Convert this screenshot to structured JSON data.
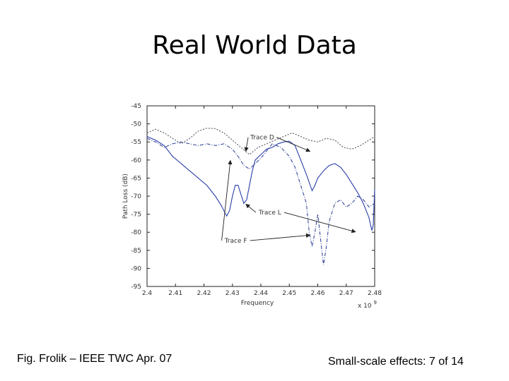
{
  "slide": {
    "title": "Real World Data",
    "footer_left": "Fig. Frolik – IEEE TWC Apr. 07",
    "footer_right": "Small-scale effects: 7 of 14"
  },
  "chart_data": {
    "type": "line",
    "title": "",
    "xlabel": "Frequency",
    "ylabel": "Path Loss (dB)",
    "x_multiplier_label": "x 10",
    "x_multiplier_exponent": "9",
    "xlim": [
      2.4,
      2.48
    ],
    "ylim": [
      -95,
      -45
    ],
    "xticks": [
      "2.4",
      "2.41",
      "2.42",
      "2.43",
      "2.44",
      "2.45",
      "2.46",
      "2.47",
      "2.48"
    ],
    "yticks": [
      "-45",
      "-50",
      "-55",
      "-60",
      "-65",
      "-70",
      "-75",
      "-80",
      "-85",
      "-90",
      "-95"
    ],
    "colors": {
      "solid": "#2a3ea8",
      "dotted": "#555566",
      "dashdot": "#3a4a9a"
    },
    "series": [
      {
        "style": "solid",
        "points": [
          [
            2.4,
            -53.5
          ],
          [
            2.403,
            -54.5
          ],
          [
            2.406,
            -56
          ],
          [
            2.409,
            -59
          ],
          [
            2.412,
            -61
          ],
          [
            2.415,
            -63
          ],
          [
            2.418,
            -65
          ],
          [
            2.421,
            -67
          ],
          [
            2.424,
            -70
          ],
          [
            2.426,
            -72.5
          ],
          [
            2.428,
            -75.5
          ],
          [
            2.429,
            -74
          ],
          [
            2.43,
            -70
          ],
          [
            2.431,
            -67
          ],
          [
            2.432,
            -67
          ],
          [
            2.433,
            -69.5
          ],
          [
            2.434,
            -72
          ],
          [
            2.435,
            -71
          ],
          [
            2.436,
            -67
          ],
          [
            2.437,
            -63
          ],
          [
            2.438,
            -60
          ],
          [
            2.44,
            -58.5
          ],
          [
            2.442,
            -57
          ],
          [
            2.444,
            -56.5
          ],
          [
            2.446,
            -55.5
          ],
          [
            2.448,
            -55
          ],
          [
            2.45,
            -54.8
          ],
          [
            2.452,
            -56
          ],
          [
            2.454,
            -60
          ],
          [
            2.456,
            -64
          ],
          [
            2.458,
            -68.5
          ],
          [
            2.459,
            -67
          ],
          [
            2.46,
            -65
          ],
          [
            2.462,
            -63
          ],
          [
            2.464,
            -61.5
          ],
          [
            2.466,
            -61
          ],
          [
            2.468,
            -62
          ],
          [
            2.47,
            -64
          ],
          [
            2.472,
            -66.5
          ],
          [
            2.474,
            -69
          ],
          [
            2.476,
            -72
          ],
          [
            2.478,
            -76
          ],
          [
            2.479,
            -79.5
          ],
          [
            2.4795,
            -78
          ],
          [
            2.48,
            -68
          ]
        ]
      },
      {
        "style": "dotted",
        "points": [
          [
            2.4,
            -52.5
          ],
          [
            2.403,
            -51.5
          ],
          [
            2.406,
            -52.5
          ],
          [
            2.409,
            -54
          ],
          [
            2.412,
            -55.5
          ],
          [
            2.415,
            -54
          ],
          [
            2.418,
            -52
          ],
          [
            2.421,
            -51.2
          ],
          [
            2.424,
            -51.3
          ],
          [
            2.427,
            -52.5
          ],
          [
            2.43,
            -54.5
          ],
          [
            2.433,
            -56.5
          ],
          [
            2.436,
            -58.5
          ],
          [
            2.439,
            -56.5
          ],
          [
            2.442,
            -55.5
          ],
          [
            2.445,
            -54.5
          ],
          [
            2.448,
            -53.5
          ],
          [
            2.451,
            -52.5
          ],
          [
            2.454,
            -53.5
          ],
          [
            2.457,
            -54.5
          ],
          [
            2.46,
            -55
          ],
          [
            2.463,
            -54
          ],
          [
            2.466,
            -54.5
          ],
          [
            2.469,
            -56.5
          ],
          [
            2.472,
            -57
          ],
          [
            2.475,
            -56
          ],
          [
            2.478,
            -54.5
          ],
          [
            2.48,
            -53.5
          ]
        ]
      },
      {
        "style": "dashdot",
        "points": [
          [
            2.4,
            -54
          ],
          [
            2.403,
            -55
          ],
          [
            2.406,
            -56.5
          ],
          [
            2.409,
            -55.5
          ],
          [
            2.412,
            -55
          ],
          [
            2.415,
            -55.5
          ],
          [
            2.418,
            -56
          ],
          [
            2.421,
            -55.5
          ],
          [
            2.424,
            -56
          ],
          [
            2.427,
            -55.5
          ],
          [
            2.43,
            -57
          ],
          [
            2.432,
            -59
          ],
          [
            2.434,
            -61.5
          ],
          [
            2.436,
            -62.5
          ],
          [
            2.438,
            -61
          ],
          [
            2.44,
            -59.5
          ],
          [
            2.442,
            -57.5
          ],
          [
            2.444,
            -55.5
          ],
          [
            2.447,
            -56.5
          ],
          [
            2.45,
            -59
          ],
          [
            2.452,
            -62
          ],
          [
            2.454,
            -67
          ],
          [
            2.456,
            -72
          ],
          [
            2.457,
            -80
          ],
          [
            2.458,
            -84
          ],
          [
            2.459,
            -80
          ],
          [
            2.46,
            -75
          ],
          [
            2.461,
            -82
          ],
          [
            2.462,
            -89
          ],
          [
            2.463,
            -84
          ],
          [
            2.464,
            -77
          ],
          [
            2.466,
            -72
          ],
          [
            2.468,
            -71
          ],
          [
            2.47,
            -73
          ],
          [
            2.472,
            -72
          ],
          [
            2.474,
            -70
          ],
          [
            2.476,
            -71
          ],
          [
            2.478,
            -73
          ],
          [
            2.48,
            -72
          ]
        ]
      }
    ],
    "annotations": [
      {
        "text": "Trace D",
        "x": 2.4405,
        "y": -53.7,
        "arrows": [
          [
            2.4347,
            -57.6
          ],
          [
            2.4573,
            -57.6
          ]
        ]
      },
      {
        "text": "Trace L",
        "x": 2.4432,
        "y": -74.5,
        "arrows": [
          [
            2.4347,
            -72.2
          ],
          [
            2.4733,
            -79.9
          ]
        ]
      },
      {
        "text": "Trace F",
        "x": 2.4312,
        "y": -82.3,
        "arrows": [
          [
            2.4293,
            -60.1
          ],
          [
            2.4573,
            -80.8
          ]
        ]
      }
    ]
  }
}
